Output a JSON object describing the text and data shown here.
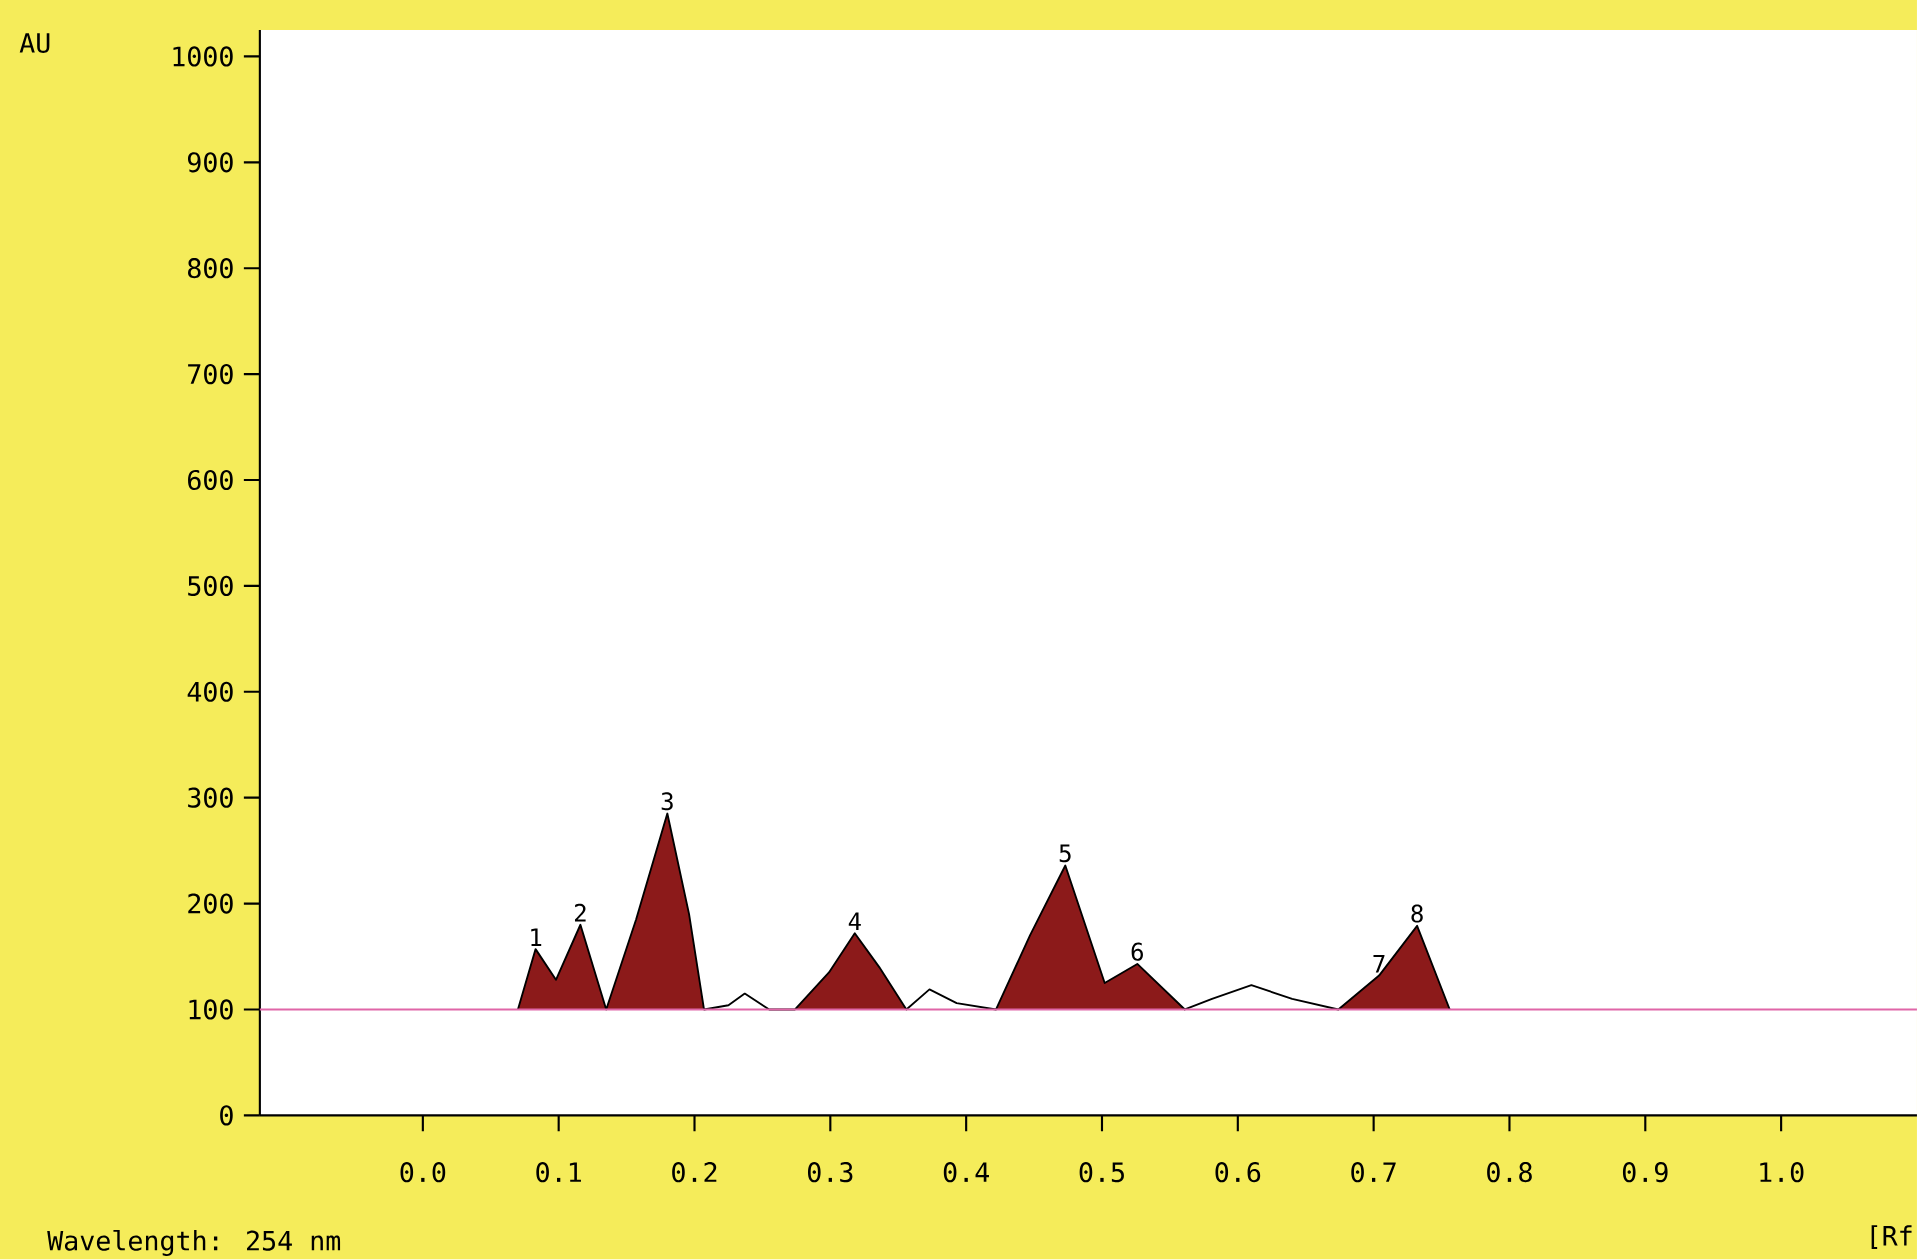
{
  "chart_data": {
    "type": "line",
    "ylabel": "AU",
    "xlabel": "[Rf",
    "x": [
      0.07,
      0.083,
      0.098,
      0.116,
      0.135,
      0.157,
      0.18,
      0.196,
      0.207,
      0.225,
      0.237,
      0.255,
      0.274,
      0.299,
      0.318,
      0.336,
      0.356,
      0.373,
      0.393,
      0.422,
      0.447,
      0.473,
      0.502,
      0.526,
      0.561,
      0.581,
      0.61,
      0.64,
      0.674,
      0.704,
      0.732,
      0.756
    ],
    "series": [
      {
        "type": "area",
        "color": "#8c1a1a",
        "values": [
          100,
          157,
          128,
          180,
          100,
          185,
          285,
          190,
          100,
          null,
          null,
          null,
          100,
          135,
          172,
          140,
          100,
          null,
          null,
          100,
          170,
          236,
          125,
          143,
          100,
          null,
          null,
          null,
          100,
          132,
          179,
          100
        ]
      },
      {
        "color": "#000000",
        "values": [
          100,
          157,
          128,
          180,
          100,
          185,
          285,
          190,
          100,
          104,
          115,
          100,
          100,
          135,
          172,
          140,
          100,
          119,
          106,
          100,
          170,
          236,
          125,
          143,
          100,
          110,
          123,
          110,
          100,
          132,
          179,
          100
        ]
      }
    ],
    "xlim": [
      -0.12,
      1.1
    ],
    "ylim": [
      0,
      1025
    ],
    "xticks": [
      {
        "value": 0,
        "label": "0.0"
      },
      0.1,
      0.2,
      0.3,
      0.4,
      0.5,
      0.6,
      0.7,
      0.8,
      0.9,
      {
        "value": 1,
        "label": "1.0"
      }
    ],
    "yticks": [
      0,
      100,
      200,
      300,
      400,
      500,
      600,
      700,
      800,
      900,
      1000
    ],
    "ref_lines": [
      {
        "axis": "y",
        "value": 100,
        "color": "#e066a8"
      }
    ],
    "annotations": [
      {
        "text": "1",
        "x": 0.083,
        "y": 157
      },
      {
        "text": "2",
        "x": 0.116,
        "y": 180
      },
      {
        "text": "3",
        "x": 0.18,
        "y": 285
      },
      {
        "text": "4",
        "x": 0.318,
        "y": 172
      },
      {
        "text": "5",
        "x": 0.473,
        "y": 236
      },
      {
        "text": "6",
        "x": 0.526,
        "y": 143
      },
      {
        "text": "7",
        "x": 0.704,
        "y": 132
      },
      {
        "text": "8",
        "x": 0.732,
        "y": 179
      },
      "Wavelength: 254 nm"
    ]
  }
}
